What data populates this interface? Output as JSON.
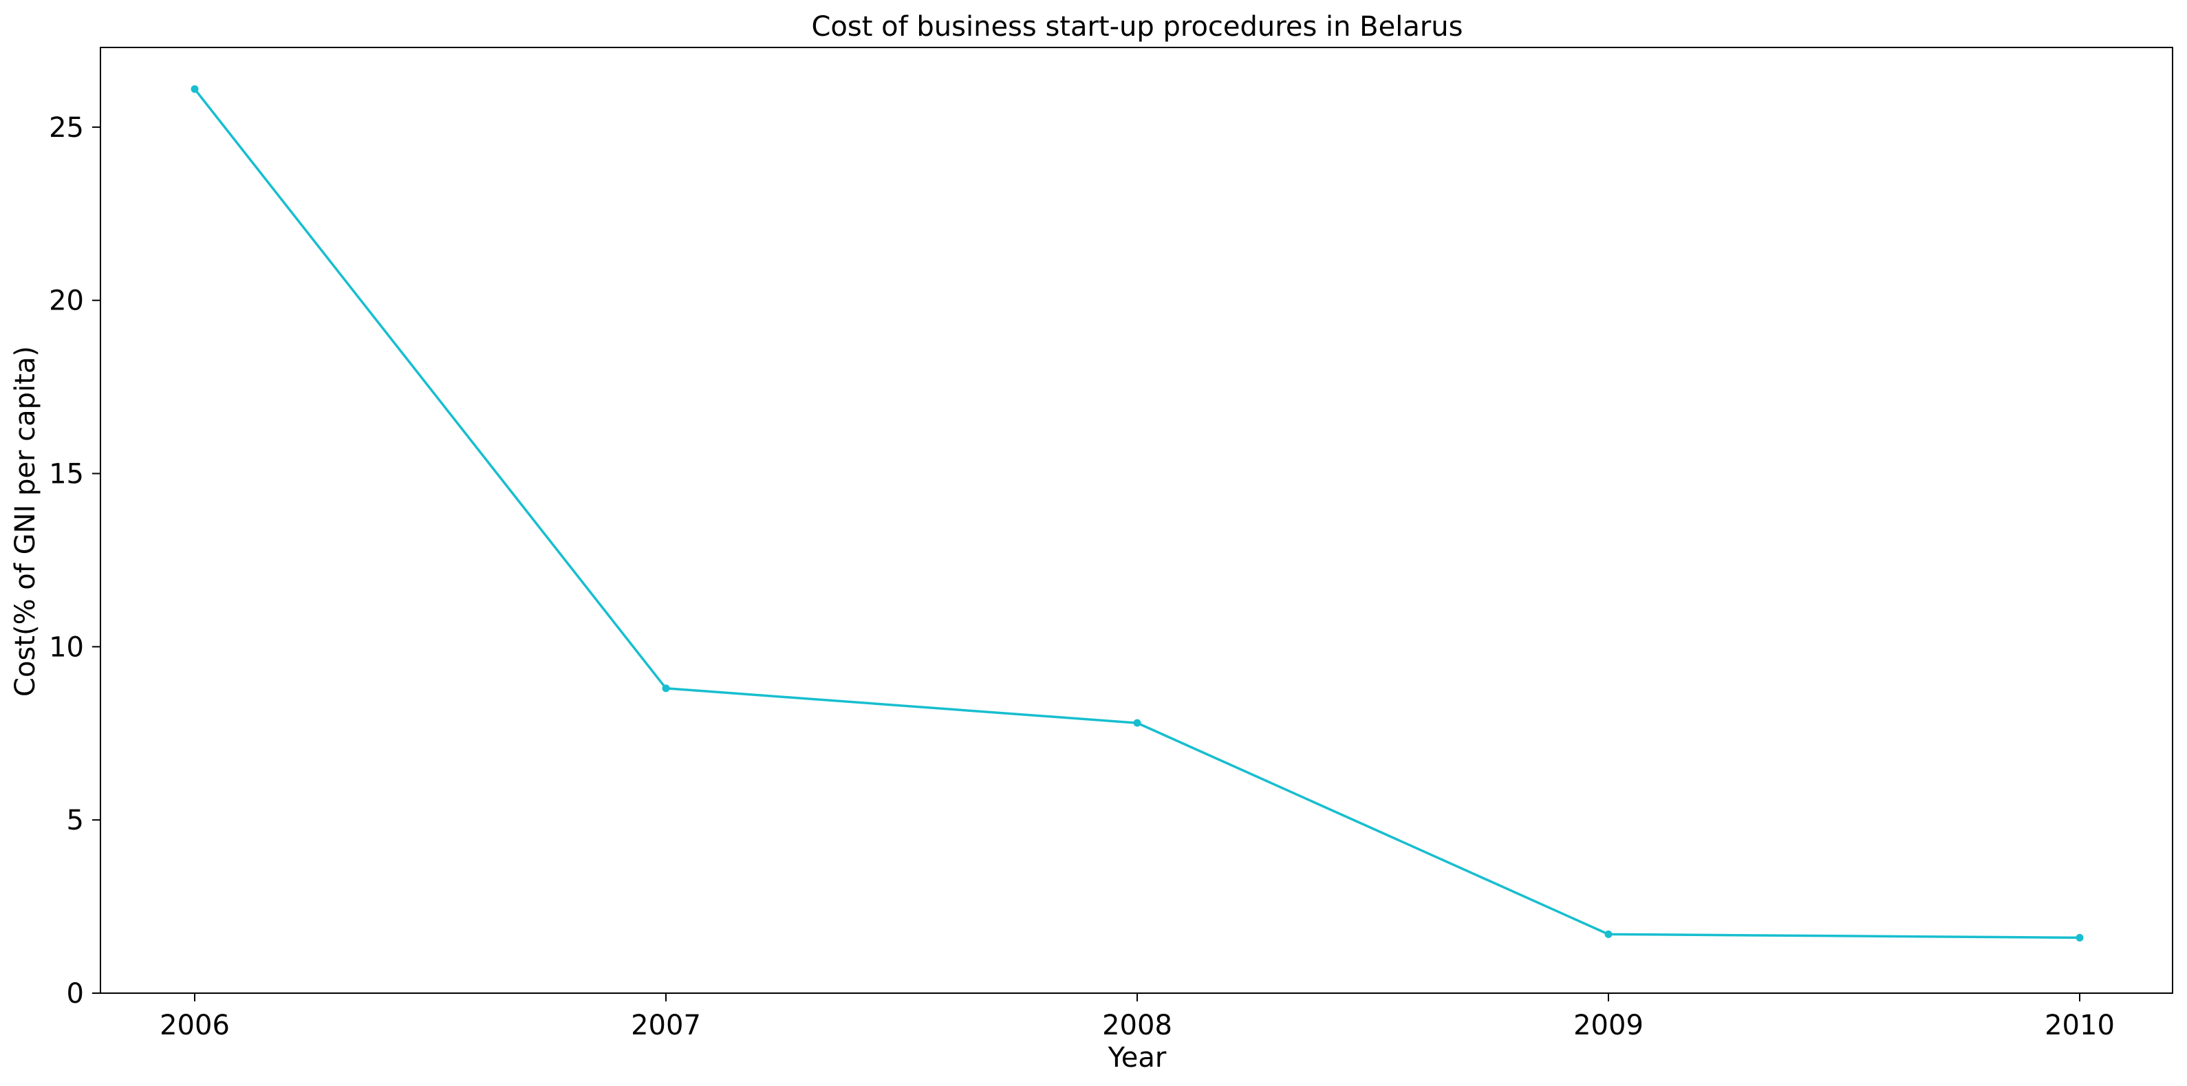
{
  "chart_data": {
    "type": "line",
    "title": "Cost of business start-up procedures in Belarus",
    "xlabel": "Year",
    "ylabel": "Cost(% of GNI per capita)",
    "x": [
      "2006",
      "2007",
      "2008",
      "2009",
      "2010"
    ],
    "series": [
      {
        "values": [
          26.1,
          8.8,
          7.8,
          1.7,
          1.6
        ],
        "color": "#17becf"
      }
    ],
    "yticks": [
      0,
      5,
      10,
      15,
      20,
      25
    ],
    "ylim": [
      0,
      27.3
    ],
    "grid": false,
    "marker": "circle"
  }
}
